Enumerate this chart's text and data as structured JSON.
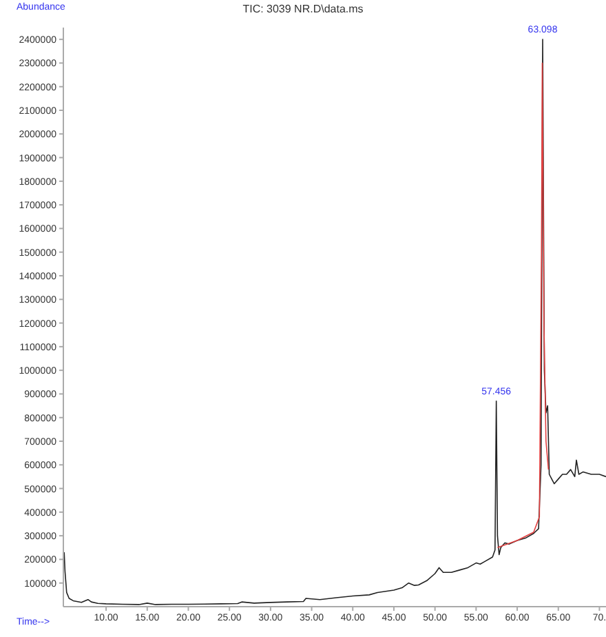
{
  "chart_data": {
    "type": "line",
    "title": "TIC: 3039 NR.D\\data.ms",
    "xlabel": "Time-->",
    "ylabel": "Abundance",
    "xlim": [
      4.8,
      70.8
    ],
    "ylim": [
      0,
      2450000
    ],
    "xticks": [
      {
        "value": 10,
        "label": "10.00"
      },
      {
        "value": 15,
        "label": "15.00"
      },
      {
        "value": 20,
        "label": "20.00"
      },
      {
        "value": 25,
        "label": "25.00"
      },
      {
        "value": 30,
        "label": "30.00"
      },
      {
        "value": 35,
        "label": "35.00"
      },
      {
        "value": 40,
        "label": "40.00"
      },
      {
        "value": 45,
        "label": "45.00"
      },
      {
        "value": 50,
        "label": "50.00"
      },
      {
        "value": 55,
        "label": "55.00"
      },
      {
        "value": 60,
        "label": "60.00"
      },
      {
        "value": 65,
        "label": "65.00"
      },
      {
        "value": 70,
        "label": "70."
      }
    ],
    "yticks": [
      100000,
      200000,
      300000,
      400000,
      500000,
      600000,
      700000,
      800000,
      900000,
      1000000,
      1100000,
      1200000,
      1300000,
      1400000,
      1500000,
      1600000,
      1700000,
      1800000,
      1900000,
      2000000,
      2100000,
      2200000,
      2300000,
      2400000
    ],
    "grid": false,
    "legend": false,
    "marker": "none",
    "line_style": "solid",
    "annotations": [
      {
        "text": "57.456",
        "x": 57.456,
        "y": 870000
      },
      {
        "text": "63.098",
        "x": 63.098,
        "y": 2400000
      }
    ],
    "series": [
      {
        "color": "#222222",
        "x": [
          4.9,
          5.0,
          5.2,
          5.5,
          6,
          7,
          7.8,
          8.2,
          9,
          10,
          12,
          14,
          15,
          16,
          18,
          20,
          22,
          24,
          26,
          26.5,
          28,
          30,
          32,
          34,
          34.3,
          36,
          38,
          40,
          42,
          43,
          44,
          45,
          46,
          46.8,
          47.5,
          48,
          49,
          50,
          50.5,
          51,
          52,
          53,
          54,
          55,
          55.5,
          56,
          57,
          57.3,
          57.456,
          57.6,
          57.8,
          58,
          58.5,
          59,
          60,
          61,
          62,
          62.6,
          62.9,
          63.098,
          63.3,
          63.5,
          63.7,
          63.9,
          64.2,
          64.5,
          65,
          65.5,
          66,
          66.5,
          67,
          67.2,
          67.5,
          68,
          69,
          70,
          70.8
        ],
        "values": [
          230000,
          150000,
          60000,
          35000,
          25000,
          18000,
          30000,
          20000,
          14000,
          12000,
          10000,
          9000,
          15000,
          9000,
          10000,
          10000,
          11000,
          12000,
          13000,
          20000,
          15000,
          18000,
          20000,
          22000,
          35000,
          30000,
          38000,
          45000,
          50000,
          60000,
          65000,
          70000,
          80000,
          100000,
          90000,
          92000,
          110000,
          140000,
          165000,
          145000,
          145000,
          155000,
          165000,
          185000,
          180000,
          190000,
          210000,
          240000,
          870000,
          300000,
          220000,
          250000,
          270000,
          265000,
          280000,
          290000,
          310000,
          330000,
          600000,
          2400000,
          1000000,
          820000,
          850000,
          560000,
          540000,
          520000,
          540000,
          560000,
          560000,
          580000,
          550000,
          620000,
          560000,
          570000,
          560000,
          560000,
          550000
        ]
      },
      {
        "color": "#e04040",
        "x": [
          57.6,
          60,
          62,
          62.7,
          62.95,
          63.05,
          63.25,
          63.5,
          63.8
        ],
        "values": [
          250000,
          280000,
          315000,
          380000,
          1500000,
          2300000,
          1200000,
          700000,
          580000
        ]
      }
    ]
  }
}
